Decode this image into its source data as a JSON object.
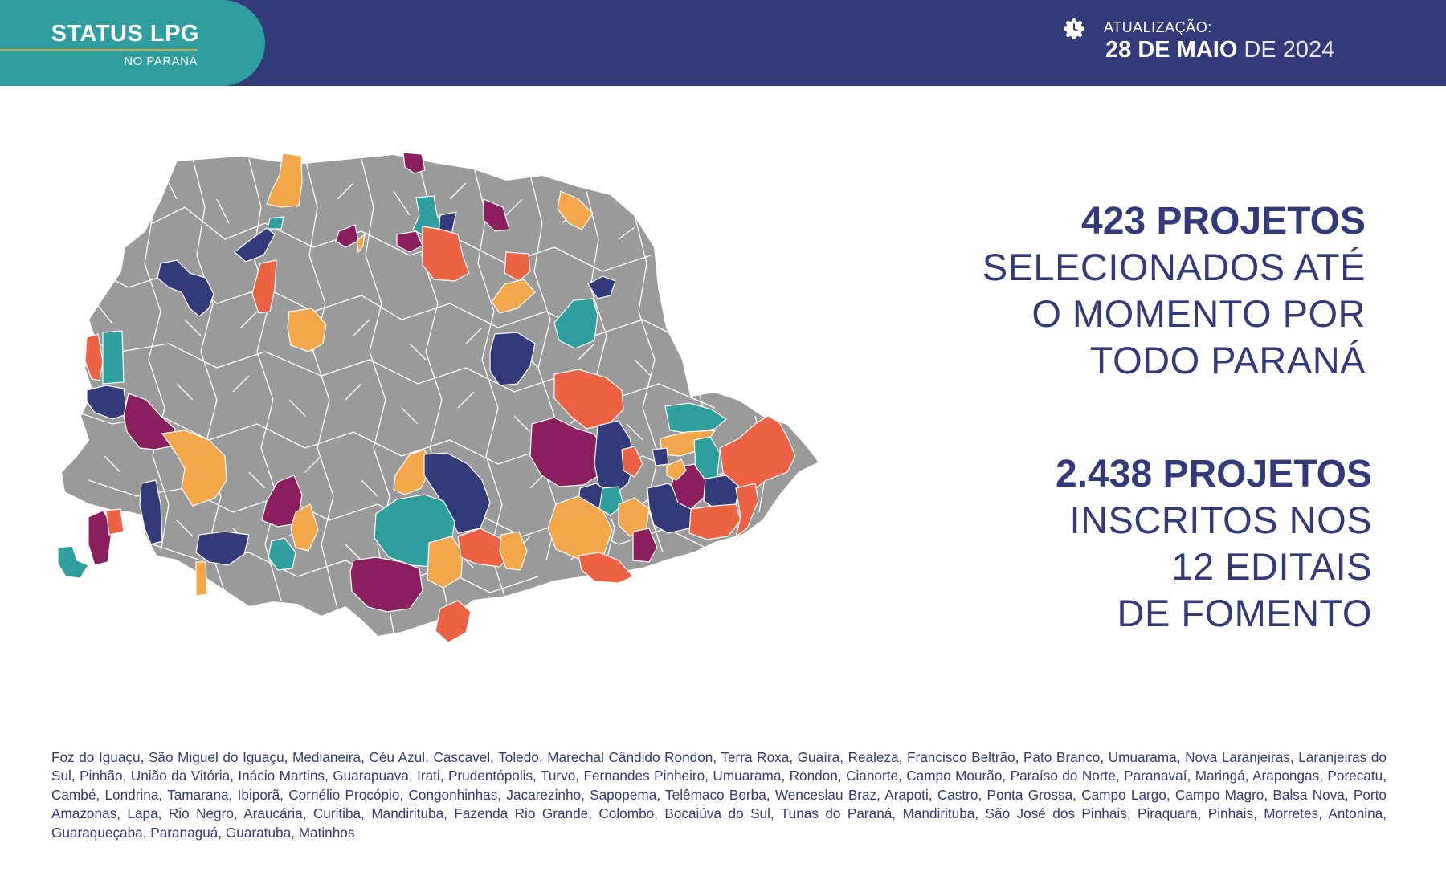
{
  "header": {
    "badge_title": "STATUS LPG",
    "badge_subtitle": "NO PARANÁ",
    "update_label": "ATUALIZAÇÃO:",
    "update_date_bold": "28 DE MAIO",
    "update_year": " DE 2024",
    "update_icon": "clock-icon",
    "colors": {
      "bar": "#323a7a",
      "badge": "#2e9e9f"
    }
  },
  "stats": [
    {
      "headline": "423 PROJETOS",
      "lines": [
        "SELECIONADOS ATÉ",
        "O MOMENTO POR",
        "TODO PARANÁ"
      ]
    },
    {
      "headline": "2.438 PROJETOS",
      "lines": [
        "INSCRITOS NOS",
        "12 EDITAIS",
        "DE FOMENTO"
      ]
    }
  ],
  "map": {
    "colors": {
      "base": "#9a9a9a",
      "teal": "#2e9e9f",
      "navy": "#323a7a",
      "purple": "#8b1e5e",
      "orange": "#f4a64a",
      "coral": "#ec6343",
      "border": "#ffffff"
    }
  },
  "footer": {
    "municipalities": "Foz do Iguaçu, São Miguel do Iguaçu, Medianeira, Céu Azul, Cascavel, Toledo, Marechal Cândido Rondon, Terra Roxa, Guaíra, Realeza, Francisco Beltrão, Pato Branco, Umuarama, Nova Laranjeiras, Laranjeiras do Sul, Pinhão, União da Vitória, Inácio Martins, Guarapuava, Irati, Prudentópolis, Turvo, Fernandes Pinheiro, Umuarama, Rondon, Cianorte, Campo Mourão, Paraíso do Norte, Paranavaí, Maringá, Arapongas, Porecatu, Cambé, Londrina, Tamarana, Ibiporã, Cornélio Procópio, Congonhinhas, Jacarezinho, Sapopema, Telêmaco Borba, Wenceslau Braz, Arapoti, Castro, Ponta Grossa, Campo Largo, Campo Magro, Balsa Nova, Porto Amazonas, Lapa, Rio Negro, Araucária, Curitiba, Mandirituba, Fazenda Rio Grande, Colombo, Bocaiúva do Sul, Tunas do Paraná, Mandirituba, São José dos Pinhais, Piraquara, Pinhais, Morretes, Antonina, Guaraqueçaba, Paranaguá, Guaratuba, Matinhos"
  }
}
